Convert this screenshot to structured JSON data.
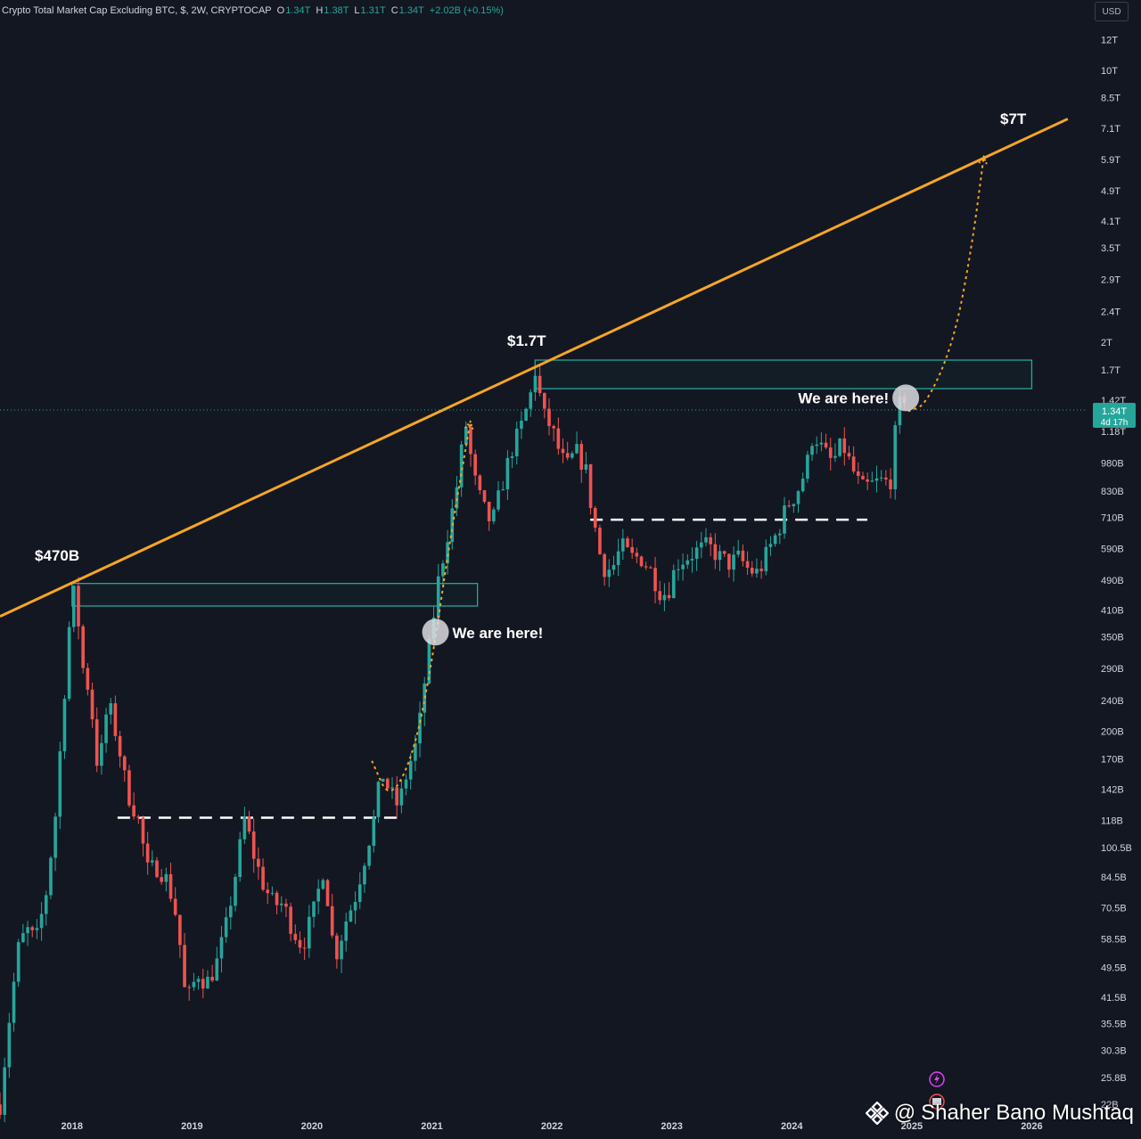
{
  "header": {
    "symbol_title": "Crypto Total Market Cap Excluding BTC, $, 2W, CRYPTOCAP",
    "o_label": "O",
    "o_value": "1.34T",
    "h_label": "H",
    "h_value": "1.38T",
    "l_label": "L",
    "l_value": "1.31T",
    "c_label": "C",
    "c_value": "1.34T",
    "change": "+2.02B (+0.15%)"
  },
  "currency": "USD",
  "price_tag": {
    "price": "1.34T",
    "countdown": "4d 17h"
  },
  "annotations": {
    "peak_2018": "$470B",
    "peak_2021": "$1.7T",
    "target": "$7T",
    "here_2020": "We are here!",
    "here_2024": "We are here!"
  },
  "watermark": {
    "at": "@",
    "author": "Shaher Bano Mushtaq"
  },
  "colors": {
    "background": "#131722",
    "up": "#26a69a",
    "down": "#ef5350",
    "trendline": "#f5a623",
    "zone": "#26a69a",
    "text": "#d1d4dc"
  },
  "chart_data": {
    "type": "candlestick",
    "title": "Crypto Total Market Cap Excluding BTC, $, 2W, CRYPTOCAP",
    "yscale": "log",
    "ylim": [
      21000000000,
      13500000000000
    ],
    "xlim": [
      2017.4,
      2026.45
    ],
    "y_ticks": [
      "12T",
      "10T",
      "8.5T",
      "7.1T",
      "5.9T",
      "4.9T",
      "4.1T",
      "3.5T",
      "2.9T",
      "2.4T",
      "2T",
      "1.7T",
      "1.42T",
      "1.18T",
      "980B",
      "830B",
      "710B",
      "590B",
      "490B",
      "410B",
      "350B",
      "290B",
      "240B",
      "200B",
      "170B",
      "142B",
      "118B",
      "100.5B",
      "84.5B",
      "70.5B",
      "58.5B",
      "49.5B",
      "41.5B",
      "35.5B",
      "30.3B",
      "25.8B",
      "22B"
    ],
    "y_tick_values": [
      12000000000000.0,
      10000000000000.0,
      8500000000000.0,
      7100000000000.0,
      5900000000000.0,
      4900000000000.0,
      4100000000000.0,
      3500000000000.0,
      2900000000000.0,
      2400000000000.0,
      2000000000000.0,
      1700000000000.0,
      1420000000000.0,
      1180000000000.0,
      980000000000.0,
      830000000000.0,
      710000000000.0,
      590000000000.0,
      490000000000.0,
      410000000000.0,
      350000000000.0,
      290000000000.0,
      240000000000.0,
      200000000000.0,
      170000000000.0,
      142000000000.0,
      118000000000.0,
      100500000000.0,
      84500000000.0,
      70500000000.0,
      58500000000.0,
      49500000000.0,
      41500000000.0,
      35500000000.0,
      30300000000.0,
      25800000000.0,
      22000000000.0
    ],
    "x_ticks": [
      "2018",
      "2019",
      "2020",
      "2021",
      "2022",
      "2023",
      "2024",
      "2025",
      "2026"
    ],
    "x_tick_values": [
      2018,
      2019,
      2020,
      2021,
      2022,
      2023,
      2024,
      2025,
      2026
    ],
    "last_price": 1340000000000,
    "last_price_label": "1.34T",
    "price_path": [
      [
        2017.4,
        22000000000.0
      ],
      [
        2017.47,
        35000000000.0
      ],
      [
        2017.55,
        55000000000.0
      ],
      [
        2017.62,
        62000000000.0
      ],
      [
        2017.7,
        58000000000.0
      ],
      [
        2017.78,
        75000000000.0
      ],
      [
        2017.86,
        120000000000.0
      ],
      [
        2017.94,
        260000000000.0
      ],
      [
        2017.99,
        420000000000.0
      ],
      [
        2018.03,
        470000000000.0
      ],
      [
        2018.08,
        300000000000.0
      ],
      [
        2018.15,
        250000000000.0
      ],
      [
        2018.22,
        155000000000.0
      ],
      [
        2018.3,
        240000000000.0
      ],
      [
        2018.38,
        190000000000.0
      ],
      [
        2018.46,
        140000000000.0
      ],
      [
        2018.55,
        120000000000.0
      ],
      [
        2018.63,
        88000000000.0
      ],
      [
        2018.72,
        90000000000.0
      ],
      [
        2018.8,
        82000000000.0
      ],
      [
        2018.88,
        65000000000.0
      ],
      [
        2018.95,
        40000000000.0
      ],
      [
        2019.05,
        48000000000.0
      ],
      [
        2019.12,
        45000000000.0
      ],
      [
        2019.2,
        50000000000.0
      ],
      [
        2019.28,
        62000000000.0
      ],
      [
        2019.36,
        85000000000.0
      ],
      [
        2019.44,
        120000000000.0
      ],
      [
        2019.52,
        95000000000.0
      ],
      [
        2019.6,
        80000000000.0
      ],
      [
        2019.68,
        72000000000.0
      ],
      [
        2019.76,
        72000000000.0
      ],
      [
        2019.84,
        62000000000.0
      ],
      [
        2019.92,
        56000000000.0
      ],
      [
        2020.02,
        70000000000.0
      ],
      [
        2020.1,
        90000000000.0
      ],
      [
        2020.19,
        52000000000.0
      ],
      [
        2020.28,
        65000000000.0
      ],
      [
        2020.36,
        75000000000.0
      ],
      [
        2020.44,
        95000000000.0
      ],
      [
        2020.52,
        120000000000.0
      ],
      [
        2020.58,
        158000000000.0
      ],
      [
        2020.64,
        142000000000.0
      ],
      [
        2020.72,
        128000000000.0
      ],
      [
        2020.8,
        160000000000.0
      ],
      [
        2020.88,
        190000000000.0
      ],
      [
        2020.94,
        270000000000.0
      ],
      [
        2020.99,
        350000000000.0
      ],
      [
        2021.05,
        480000000000.0
      ],
      [
        2021.12,
        620000000000.0
      ],
      [
        2021.2,
        820000000000.0
      ],
      [
        2021.28,
        1250000000000.0
      ],
      [
        2021.35,
        900000000000.0
      ],
      [
        2021.42,
        760000000000.0
      ],
      [
        2021.5,
        680000000000.0
      ],
      [
        2021.58,
        850000000000.0
      ],
      [
        2021.66,
        1050000000000.0
      ],
      [
        2021.74,
        1200000000000.0
      ],
      [
        2021.82,
        1450000000000.0
      ],
      [
        2021.86,
        1700000000000.0
      ],
      [
        2021.93,
        1300000000000.0
      ],
      [
        2022.0,
        1200000000000.0
      ],
      [
        2022.06,
        1050000000000.0
      ],
      [
        2022.12,
        950000000000.0
      ],
      [
        2022.2,
        1050000000000.0
      ],
      [
        2022.28,
        950000000000.0
      ],
      [
        2022.34,
        720000000000.0
      ],
      [
        2022.42,
        530000000000.0
      ],
      [
        2022.5,
        520000000000.0
      ],
      [
        2022.58,
        600000000000.0
      ],
      [
        2022.66,
        560000000000.0
      ],
      [
        2022.74,
        560000000000.0
      ],
      [
        2022.82,
        520000000000.0
      ],
      [
        2022.9,
        460000000000.0
      ],
      [
        2022.96,
        450000000000.0
      ],
      [
        2023.04,
        540000000000.0
      ],
      [
        2023.12,
        560000000000.0
      ],
      [
        2023.2,
        580000000000.0
      ],
      [
        2023.3,
        600000000000.0
      ],
      [
        2023.4,
        560000000000.0
      ],
      [
        2023.48,
        540000000000.0
      ],
      [
        2023.56,
        560000000000.0
      ],
      [
        2023.64,
        520000000000.0
      ],
      [
        2023.72,
        510000000000.0
      ],
      [
        2023.8,
        580000000000.0
      ],
      [
        2023.88,
        650000000000.0
      ],
      [
        2023.96,
        760000000000.0
      ],
      [
        2024.04,
        820000000000.0
      ],
      [
        2024.12,
        950000000000.0
      ],
      [
        2024.18,
        1180000000000.0
      ],
      [
        2024.26,
        1050000000000.0
      ],
      [
        2024.34,
        980000000000.0
      ],
      [
        2024.42,
        1100000000000.0
      ],
      [
        2024.5,
        950000000000.0
      ],
      [
        2024.58,
        840000000000.0
      ],
      [
        2024.66,
        860000000000.0
      ],
      [
        2024.74,
        880000000000.0
      ],
      [
        2024.82,
        870000000000.0
      ],
      [
        2024.86,
        1150000000000.0
      ],
      [
        2024.9,
        1380000000000.0
      ],
      [
        2024.94,
        1450000000000.0
      ],
      [
        2024.97,
        1340000000000.0
      ]
    ],
    "trendline": {
      "points": [
        [
          2017.4,
          395000000000.0
        ],
        [
          2026.3,
          7500000000000.0
        ]
      ],
      "label": "$7T"
    },
    "zones": [
      {
        "x": [
          2018.0,
          2021.38
        ],
        "y": [
          420000000000.0,
          480000000000.0
        ]
      },
      {
        "x": [
          2021.86,
          2026.0
        ],
        "y": [
          1520000000000.0,
          1800000000000.0
        ]
      }
    ],
    "support_lines": [
      {
        "x": [
          2018.38,
          2020.77
        ],
        "y": 120000000000.0
      },
      {
        "x": [
          2022.32,
          2024.63
        ],
        "y": 700000000000.0
      }
    ],
    "projections": [
      {
        "points": [
          [
            2020.5,
            168000000000.0
          ],
          [
            2020.65,
            132000000000.0
          ],
          [
            2020.85,
            175000000000.0
          ],
          [
            2021.0,
            300000000000.0
          ],
          [
            2021.15,
            620000000000.0
          ],
          [
            2021.32,
            1250000000000.0
          ]
        ]
      },
      {
        "points": [
          [
            2024.97,
            1330000000000.0
          ],
          [
            2025.12,
            1380000000000.0
          ],
          [
            2025.35,
            2000000000000.0
          ],
          [
            2025.5,
            3500000000000.0
          ],
          [
            2025.6,
            6000000000000.0
          ]
        ]
      }
    ],
    "markers": [
      {
        "x": 2021.03,
        "y": 360000000000.0,
        "label": "We are here!"
      },
      {
        "x": 2024.95,
        "y": 1440000000000.0,
        "label": "We are here!"
      }
    ]
  }
}
